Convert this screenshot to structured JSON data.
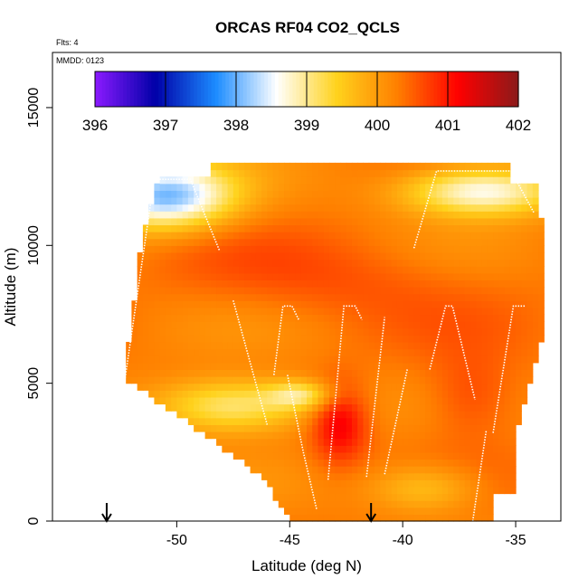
{
  "chart_data": {
    "type": "heatmap",
    "title": "ORCAS RF04 CO2_QCLS",
    "annotations": [
      "Flts: 4",
      "MMDD: 0123"
    ],
    "xlabel": "Latitude (deg N)",
    "ylabel": "Altitude (m)",
    "xlim": [
      -55.5,
      -33
    ],
    "ylim": [
      0,
      17000
    ],
    "x_ticks": [
      -50,
      -45,
      -40,
      -35
    ],
    "y_ticks": [
      0,
      5000,
      10000,
      15000
    ],
    "x_tick_labels": [
      "-50",
      "-45",
      "-40",
      "-35"
    ],
    "y_tick_labels": [
      "0",
      "5000",
      "10000",
      "15000"
    ],
    "colorbar": {
      "min": 396,
      "max": 402,
      "ticks": [
        396,
        397,
        398,
        399,
        400,
        401,
        402
      ],
      "tick_labels": [
        "396",
        "397",
        "398",
        "399",
        "400",
        "401",
        "402"
      ],
      "colors": [
        "#8b1aff",
        "#0000a8",
        "#1c8cff",
        "#ffffff",
        "#ffd21c",
        "#ff7f00",
        "#ff0000",
        "#8b1a1a"
      ],
      "placement": "top-inset"
    },
    "markers": {
      "type": "down-arrow",
      "latitudes": [
        -53.1,
        -41.4
      ]
    },
    "field_summary": {
      "background_value": 400.3,
      "upper_band_value": 398.1,
      "lower_west_wedge_value": 398.7,
      "core_value": 401.2
    },
    "flight_tracks": [
      {
        "points": [
          [
            -52.3,
            5100
          ],
          [
            -51.0,
            12400
          ]
        ]
      },
      {
        "points": [
          [
            -51.0,
            12400
          ],
          [
            -49.4,
            12400
          ],
          [
            -48.1,
            9800
          ]
        ]
      },
      {
        "points": [
          [
            -47.5,
            8000
          ],
          [
            -46.0,
            3500
          ]
        ]
      },
      {
        "points": [
          [
            -45.7,
            5300
          ],
          [
            -45.3,
            7800
          ],
          [
            -44.9,
            7800
          ],
          [
            -44.6,
            7300
          ]
        ]
      },
      {
        "points": [
          [
            -45.1,
            5300
          ],
          [
            -44.4,
            2500
          ],
          [
            -43.8,
            400
          ]
        ]
      },
      {
        "points": [
          [
            -43.3,
            1500
          ],
          [
            -42.6,
            7800
          ],
          [
            -42.1,
            7800
          ],
          [
            -41.8,
            7300
          ]
        ]
      },
      {
        "points": [
          [
            -41.6,
            1600
          ],
          [
            -40.8,
            7400
          ]
        ]
      },
      {
        "points": [
          [
            -40.8,
            1700
          ],
          [
            -39.8,
            5500
          ]
        ]
      },
      {
        "points": [
          [
            -38.8,
            5500
          ],
          [
            -38.1,
            7800
          ],
          [
            -37.8,
            7800
          ],
          [
            -36.8,
            4400
          ]
        ]
      },
      {
        "points": [
          [
            -36.0,
            3200
          ],
          [
            -35.1,
            7800
          ],
          [
            -34.6,
            7800
          ]
        ]
      },
      {
        "points": [
          [
            -36.9,
            0
          ],
          [
            -36.3,
            3300
          ]
        ]
      },
      {
        "points": [
          [
            -39.5,
            9900
          ],
          [
            -38.5,
            12700
          ],
          [
            -37.0,
            12700
          ],
          [
            -35.2,
            12700
          ],
          [
            -34.2,
            11200
          ]
        ]
      }
    ]
  }
}
